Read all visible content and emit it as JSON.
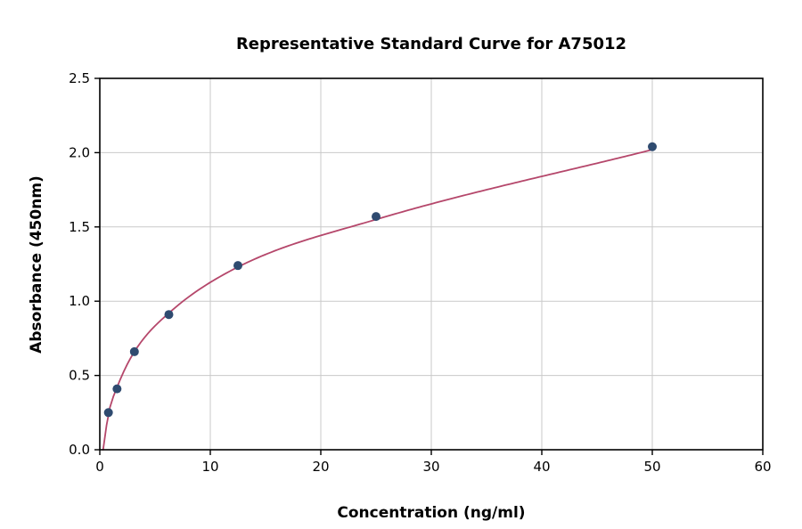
{
  "chart_data": {
    "type": "scatter",
    "title": "Representative Standard Curve for A75012",
    "xlabel": "Concentration (ng/ml)",
    "ylabel": "Absorbance (450nm)",
    "xlim": [
      0,
      60
    ],
    "ylim": [
      0,
      2.5
    ],
    "xticks": [
      0,
      10,
      20,
      30,
      40,
      50,
      60
    ],
    "xtick_labels": [
      "0",
      "10",
      "20",
      "30",
      "40",
      "50",
      "60"
    ],
    "yticks": [
      0,
      0.5,
      1.0,
      1.5,
      2.0,
      2.5
    ],
    "ytick_labels": [
      "0.0",
      "0.5",
      "1.0",
      "1.5",
      "2.0",
      "2.5"
    ],
    "grid": true,
    "legend": "none",
    "series": [
      {
        "name": "standards",
        "type": "scatter",
        "x": [
          0.78,
          1.56,
          3.13,
          6.25,
          12.5,
          25,
          50
        ],
        "y": [
          0.25,
          0.41,
          0.66,
          0.91,
          1.24,
          1.57,
          2.04
        ],
        "color": "#2f4b70"
      },
      {
        "name": "fitted-curve",
        "type": "line",
        "x": [
          0.3,
          0.78,
          1.56,
          3.13,
          6.25,
          12.5,
          25,
          50
        ],
        "y": [
          0.0,
          0.24,
          0.42,
          0.66,
          0.92,
          1.23,
          1.55,
          2.02
        ],
        "color": "#b5476b"
      }
    ],
    "colors": {
      "grid": "#c9c9c9",
      "axis": "#000000",
      "background": "#ffffff"
    }
  }
}
